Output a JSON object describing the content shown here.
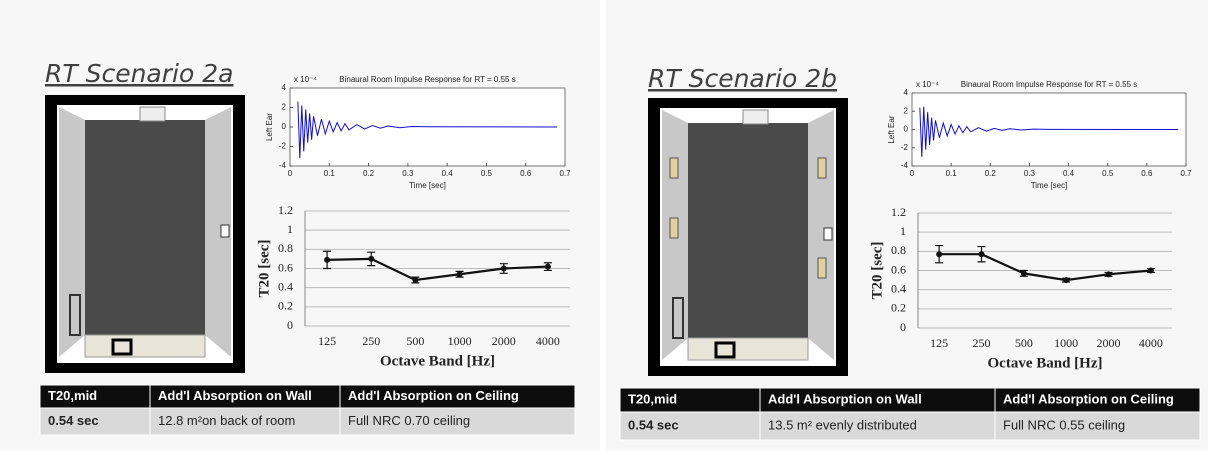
{
  "chart_data": [
    {
      "type": "line",
      "title": "Binaural Room Impulse Response for RT = 0.55 s",
      "annotation": "x 10⁻⁴",
      "ylabel": "Left Ear",
      "xlabel": "Time [sec]",
      "x": [
        0.02,
        0.025,
        0.03,
        0.035,
        0.04,
        0.045,
        0.05,
        0.055,
        0.06,
        0.07,
        0.08,
        0.09,
        0.1,
        0.11,
        0.12,
        0.13,
        0.14,
        0.15,
        0.17,
        0.19,
        0.21,
        0.23,
        0.25,
        0.28,
        0.31,
        0.35,
        0.68
      ],
      "values": [
        2.6,
        -3.2,
        2.2,
        -2.5,
        1.8,
        -1.6,
        1.4,
        -1.3,
        1.1,
        -0.9,
        0.8,
        -0.7,
        0.6,
        -0.5,
        0.45,
        -0.4,
        0.35,
        -0.3,
        0.25,
        -0.2,
        0.15,
        -0.12,
        0.1,
        -0.08,
        0.05,
        0.02,
        0
      ],
      "color": "#1010d0",
      "xlim": [
        0,
        0.7
      ],
      "ylim": [
        -4,
        4
      ],
      "xticks": [
        0,
        0.1,
        0.2,
        0.3,
        0.4,
        0.5,
        0.6,
        0.7
      ],
      "yticks": [
        4,
        2,
        0,
        -2,
        -4
      ]
    },
    {
      "type": "errorline",
      "ylabel": "T20 [sec]",
      "xlabel": "Octave Band [Hz]",
      "categories": [
        "125",
        "250",
        "500",
        "1000",
        "2000",
        "4000"
      ],
      "values": [
        0.69,
        0.7,
        0.48,
        0.54,
        0.6,
        0.62
      ],
      "errors": [
        0.09,
        0.07,
        0.03,
        0.03,
        0.05,
        0.04
      ],
      "color": "#111111",
      "ylim": [
        0,
        1.2
      ],
      "yticks": [
        0,
        0.2,
        0.4,
        0.6,
        0.8,
        1,
        1.2
      ],
      "grid": true
    },
    {
      "type": "line",
      "title": "Binaural Room Impulse Response for RT = 0.55 s",
      "annotation": "x 10⁻⁴",
      "ylabel": "Left Ear",
      "xlabel": "Time [sec]",
      "x": [
        0.02,
        0.025,
        0.03,
        0.035,
        0.04,
        0.045,
        0.05,
        0.055,
        0.06,
        0.07,
        0.08,
        0.09,
        0.1,
        0.11,
        0.12,
        0.13,
        0.14,
        0.15,
        0.17,
        0.19,
        0.21,
        0.23,
        0.25,
        0.28,
        0.31,
        0.35,
        0.68
      ],
      "values": [
        2.4,
        -3.0,
        2.5,
        -2.2,
        1.9,
        -1.7,
        1.3,
        -1.2,
        1.0,
        -0.9,
        0.7,
        -0.7,
        0.55,
        -0.5,
        0.4,
        -0.35,
        0.3,
        -0.25,
        0.2,
        -0.18,
        0.12,
        -0.1,
        0.08,
        -0.06,
        0.04,
        0.02,
        0
      ],
      "color": "#1010d0",
      "xlim": [
        0,
        0.7
      ],
      "ylim": [
        -4,
        4
      ],
      "xticks": [
        0,
        0.1,
        0.2,
        0.3,
        0.4,
        0.5,
        0.6,
        0.7
      ],
      "yticks": [
        4,
        2,
        0,
        -2,
        -4
      ]
    },
    {
      "type": "errorline",
      "ylabel": "T20 [sec]",
      "xlabel": "Octave Band [Hz]",
      "categories": [
        "125",
        "250",
        "500",
        "1000",
        "2000",
        "4000"
      ],
      "values": [
        0.77,
        0.77,
        0.57,
        0.5,
        0.56,
        0.6
      ],
      "errors": [
        0.09,
        0.08,
        0.03,
        0.02,
        0.02,
        0.02
      ],
      "color": "#111111",
      "ylim": [
        0,
        1.2
      ],
      "yticks": [
        0,
        0.2,
        0.4,
        0.6,
        0.8,
        1,
        1.2
      ],
      "grid": true
    }
  ],
  "slides": [
    {
      "title": "RT Scenario 2a",
      "table": {
        "header": [
          "T20,mid",
          "Add'l Absorption on Wall",
          "Add'l Absorption on Ceiling"
        ],
        "rows": [
          [
            "0.54 sec",
            "12.8 m²on back of room",
            "Full NRC 0.70 ceiling"
          ]
        ]
      }
    },
    {
      "title": "RT Scenario 2b",
      "table": {
        "header": [
          "T20,mid",
          "Add'l Absorption on Wall",
          "Add'l Absorption on Ceiling"
        ],
        "rows": [
          [
            "0.54 sec",
            "13.5 m² evenly distributed",
            "Full NRC 0.55 ceiling"
          ]
        ]
      }
    }
  ]
}
